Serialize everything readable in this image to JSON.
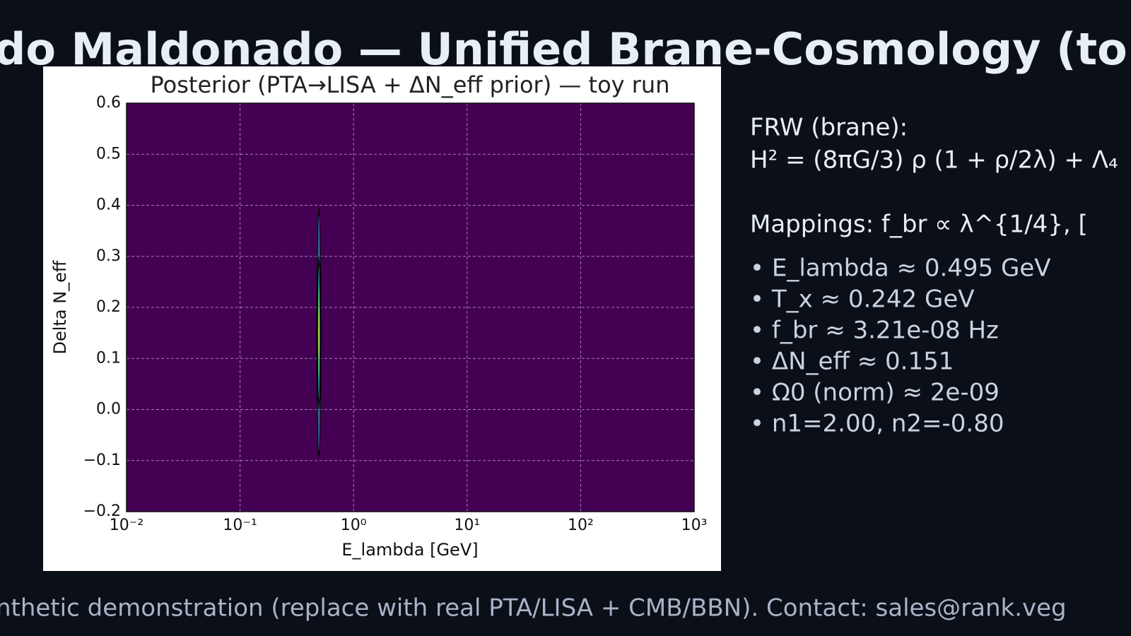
{
  "header": {
    "title": "do Maldonado — Unified Brane-Cosmology (to"
  },
  "chart_data": {
    "type": "contour",
    "title": "Posterior (PTA→LISA + ΔN_eff prior) — toy run",
    "x_label": "E_lambda [GeV]",
    "y_label": "Delta N_eff",
    "x_scale": "log",
    "grid": true,
    "background": "#440154",
    "xlim": [
      0.01,
      1000
    ],
    "xticks": [
      {
        "value": 0.01,
        "label": "10⁻²"
      },
      {
        "value": 0.1,
        "label": "10⁻¹"
      },
      {
        "value": 1,
        "label": "10⁰"
      },
      {
        "value": 10,
        "label": "10¹"
      },
      {
        "value": 100,
        "label": "10²"
      },
      {
        "value": 1000,
        "label": "10³"
      }
    ],
    "ylim": [
      -0.2,
      0.6
    ],
    "yticks": [
      {
        "value": -0.2,
        "label": "−0.2"
      },
      {
        "value": -0.1,
        "label": "−0.1"
      },
      {
        "value": 0,
        "label": "0.0"
      },
      0.1,
      0.2,
      0.3,
      0.4,
      0.5,
      0.6
    ],
    "regions": [
      {
        "xlo": 0.47,
        "xhi": 0.52,
        "ylo": -0.095,
        "yhi": 0.395,
        "color": "#000000"
      },
      {
        "xlo": 0.48,
        "xhi": 0.51,
        "ylo": -0.08,
        "yhi": 0.38,
        "color": "#31688e"
      },
      {
        "xlo": 0.475,
        "xhi": 0.515,
        "ylo": 0.0,
        "yhi": 0.3,
        "color": "#000000"
      },
      {
        "xlo": 0.485,
        "xhi": 0.505,
        "ylo": 0.02,
        "yhi": 0.28,
        "color": "#21918c"
      },
      {
        "xlo": 0.488,
        "xhi": 0.502,
        "ylo": 0.06,
        "yhi": 0.24,
        "color": "#5ec962"
      },
      {
        "xlo": 0.491,
        "xhi": 0.499,
        "ylo": 0.1,
        "yhi": 0.2,
        "color": "#fde725"
      }
    ]
  },
  "side": {
    "lines": [
      "FRW (brane):",
      "H² = (8πG/3) ρ (1 + ρ/2λ) + Λ₄",
      "Mappings:  f_br ∝ λ^{1/4},    [",
      "• E_lambda ≈ 0.495 GeV",
      "• T_x ≈ 0.242 GeV",
      "• f_br ≈ 3.21e-08 Hz",
      "• ΔN_eff ≈ 0.151",
      "• Ω0 (norm) ≈ 2e-09",
      "• n1=2.00, n2=-0.80"
    ]
  },
  "footer": {
    "text": "nthetic demonstration (replace with real PTA/LISA + CMB/BBN).  Contact: sales@rank.veg"
  }
}
